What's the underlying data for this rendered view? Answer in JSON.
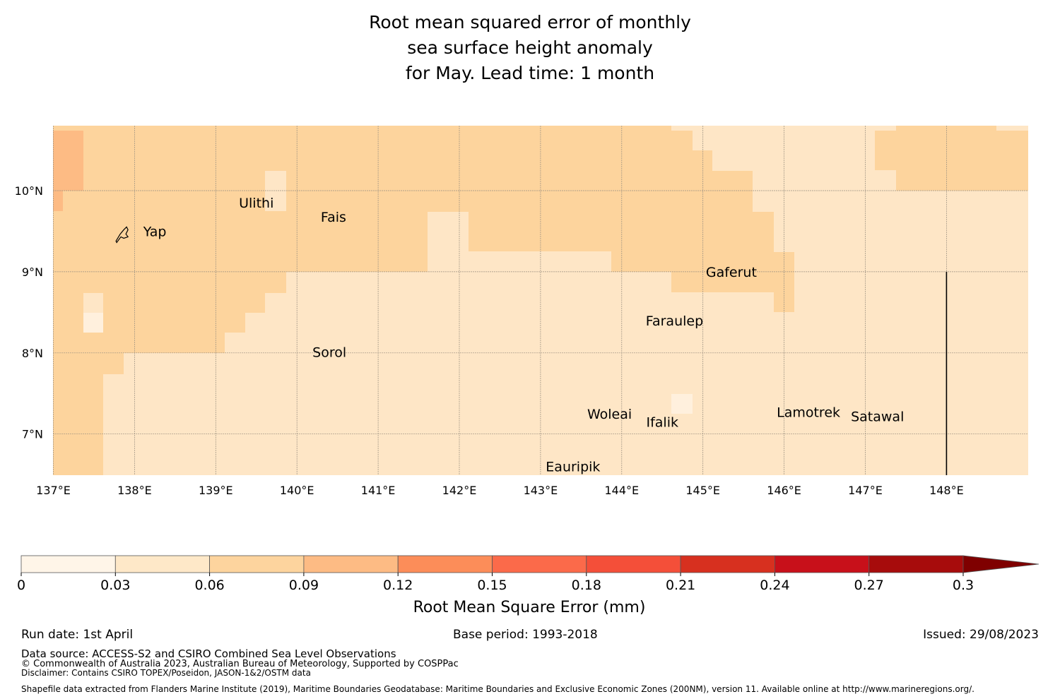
{
  "title": {
    "line1": "Root mean squared error of monthly",
    "line2": "sea surface height anomaly",
    "line3": "for May. Lead time: 1 month"
  },
  "map": {
    "lon_range": [
      137,
      149
    ],
    "lat_range": [
      6.5,
      10.8
    ],
    "x_ticks": [
      "137°E",
      "138°E",
      "139°E",
      "140°E",
      "141°E",
      "142°E",
      "143°E",
      "144°E",
      "145°E",
      "146°E",
      "147°E",
      "148°E"
    ],
    "y_ticks": [
      "10°N",
      "9°N",
      "8°N",
      "7°N"
    ],
    "places": [
      {
        "name": "Yap",
        "lon": 138.25,
        "lat": 9.5
      },
      {
        "name": "Ulithi",
        "lon": 139.5,
        "lat": 9.85
      },
      {
        "name": "Fais",
        "lon": 140.45,
        "lat": 9.68
      },
      {
        "name": "Gaferut",
        "lon": 145.35,
        "lat": 9.0
      },
      {
        "name": "Faraulep",
        "lon": 144.65,
        "lat": 8.4
      },
      {
        "name": "Sorol",
        "lon": 140.4,
        "lat": 8.01
      },
      {
        "name": "Woleai",
        "lon": 143.85,
        "lat": 7.25
      },
      {
        "name": "Ifalik",
        "lon": 144.5,
        "lat": 7.15
      },
      {
        "name": "Lamotrek",
        "lon": 146.3,
        "lat": 7.27
      },
      {
        "name": "Satawal",
        "lon": 147.15,
        "lat": 7.22
      },
      {
        "name": "Eauripik",
        "lon": 143.4,
        "lat": 6.6
      }
    ],
    "boundary_line": {
      "lon": 148.0,
      "lat_from": 6.5,
      "lat_to": 9.0
    },
    "shading_levels": {
      "c1": "#fff0dd",
      "c2": "#fee6c6",
      "c3": "#fdd49d",
      "c4": "#fdbb84"
    }
  },
  "colorbar": {
    "ticks": [
      "0",
      "0.03",
      "0.06",
      "0.09",
      "0.12",
      "0.15",
      "0.18",
      "0.21",
      "0.24",
      "0.27",
      "0.3"
    ],
    "colors": [
      "#fff5e8",
      "#fee8c8",
      "#fdd49e",
      "#fdbb84",
      "#fc8d59",
      "#fb6a4a",
      "#f44f39",
      "#d7301f",
      "#c8101a",
      "#a70c0c"
    ],
    "extend_color": "#7f0000",
    "label": "Root Mean Square Error (mm)"
  },
  "footer": {
    "run_date": "Run date: 1st April",
    "base_period": "Base period: 1993-2018",
    "issued": "Issued: 29/08/2023",
    "data_source": "Data source: ACCESS-S2 and CSIRO Combined Sea Level Observations",
    "copyright": "© Commonwealth of Australia 2023, Australian Bureau of Meteorology, Supported by COSPPac",
    "disclaimer": "Disclaimer: Contains CSIRO TOPEX/Poseidon, JASON-1&2/OSTM data",
    "shapefile": "Shapefile data extracted from Flanders Marine Institute (2019), Maritime Boundaries Geodatabase: Maritime Boundaries and Exclusive Economic Zones (200NM), version 11. Available online at http://www.marineregions.org/."
  }
}
